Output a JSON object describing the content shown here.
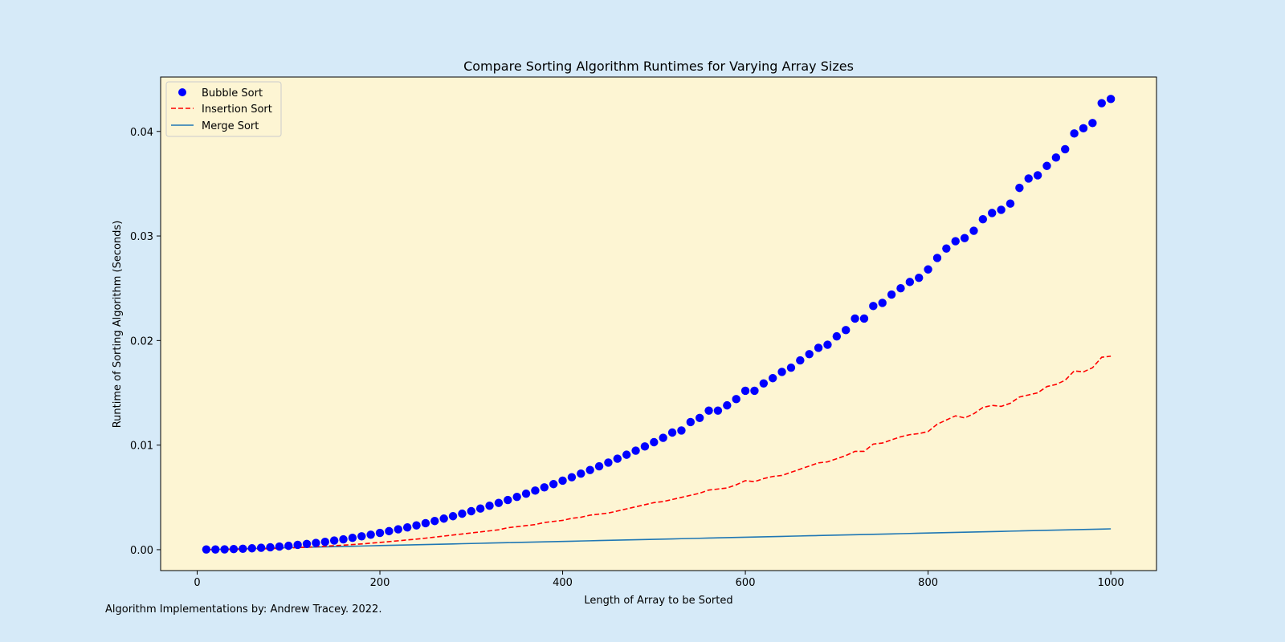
{
  "credit": "Algorithm Implementations by: Andrew Tracey. 2022.",
  "colors": {
    "figure_background": "#d6eaf8",
    "axes_background": "#fdf5d3",
    "bubble": "#0000ff",
    "insertion": "#ff0000",
    "merge": "#1f77b4"
  },
  "chart_data": {
    "type": "line",
    "title": "Compare Sorting Algorithm Runtimes for Varying Array Sizes",
    "xlabel": "Length of Array to be Sorted",
    "ylabel": "Runtime of Sorting Algorithm (Seconds)",
    "xlim": [
      -40,
      1050
    ],
    "ylim": [
      -0.002,
      0.0452
    ],
    "xticks": [
      0,
      200,
      400,
      600,
      800,
      1000
    ],
    "xtick_labels": [
      "0",
      "200",
      "400",
      "600",
      "800",
      "1000"
    ],
    "yticks": [
      0,
      0.01,
      0.02,
      0.03,
      0.04
    ],
    "ytick_labels": [
      "0.00",
      "0.01",
      "0.02",
      "0.03",
      "0.04"
    ],
    "grid": false,
    "legend_position": "upper-left",
    "x": [
      10,
      20,
      30,
      40,
      50,
      60,
      70,
      80,
      90,
      100,
      110,
      120,
      130,
      140,
      150,
      160,
      170,
      180,
      190,
      200,
      210,
      220,
      230,
      240,
      250,
      260,
      270,
      280,
      290,
      300,
      310,
      320,
      330,
      340,
      350,
      360,
      370,
      380,
      390,
      400,
      410,
      420,
      430,
      440,
      450,
      460,
      470,
      480,
      490,
      500,
      510,
      520,
      530,
      540,
      550,
      560,
      570,
      580,
      590,
      600,
      610,
      620,
      630,
      640,
      650,
      660,
      670,
      680,
      690,
      700,
      710,
      720,
      730,
      740,
      750,
      760,
      770,
      780,
      790,
      800,
      810,
      820,
      830,
      840,
      850,
      860,
      870,
      880,
      890,
      900,
      910,
      920,
      930,
      940,
      950,
      960,
      970,
      980,
      990,
      1000
    ],
    "series": [
      {
        "name": "Bubble Sort",
        "style": "markers",
        "color": "#0000ff",
        "values": [
          2e-05,
          2e-05,
          3e-05,
          6e-05,
          9e-05,
          0.00013,
          0.00018,
          0.00023,
          0.0003,
          0.00037,
          0.00046,
          0.00055,
          0.00064,
          0.00075,
          0.00087,
          0.00099,
          0.00113,
          0.00128,
          0.00143,
          0.0016,
          0.00177,
          0.00195,
          0.00213,
          0.00232,
          0.00253,
          0.00274,
          0.00297,
          0.0032,
          0.00344,
          0.00368,
          0.00393,
          0.0042,
          0.00447,
          0.00475,
          0.00505,
          0.00535,
          0.00565,
          0.00596,
          0.00627,
          0.0066,
          0.00693,
          0.00727,
          0.00762,
          0.00797,
          0.00833,
          0.0087,
          0.00908,
          0.00947,
          0.00987,
          0.01028,
          0.0107,
          0.0112,
          0.0114,
          0.0122,
          0.0126,
          0.0133,
          0.0133,
          0.0138,
          0.0144,
          0.0152,
          0.0152,
          0.0159,
          0.0164,
          0.017,
          0.0174,
          0.0181,
          0.0187,
          0.0193,
          0.0196,
          0.0204,
          0.021,
          0.0221,
          0.0221,
          0.0233,
          0.0236,
          0.0244,
          0.025,
          0.0256,
          0.026,
          0.0268,
          0.0279,
          0.0288,
          0.0295,
          0.0298,
          0.0305,
          0.0316,
          0.0322,
          0.0325,
          0.0331,
          0.0346,
          0.0355,
          0.0358,
          0.0367,
          0.0375,
          0.0383,
          0.0398,
          0.0403,
          0.0408,
          0.0427,
          0.0431
        ]
      },
      {
        "name": "Insertion Sort",
        "style": "dashed",
        "color": "#ff0000",
        "values": [
          1e-05,
          1e-05,
          2e-05,
          3e-05,
          4e-05,
          6e-05,
          8e-05,
          0.0001,
          0.00013,
          0.00016,
          0.0002,
          0.00024,
          0.00028,
          0.00033,
          0.00038,
          0.00043,
          0.00049,
          0.00055,
          0.00062,
          0.00069,
          0.00077,
          0.00085,
          0.00093,
          0.00101,
          0.0011,
          0.0012,
          0.0013,
          0.0014,
          0.0015,
          0.0016,
          0.0017,
          0.0018,
          0.0019,
          0.0021,
          0.0022,
          0.0023,
          0.0024,
          0.0026,
          0.0027,
          0.0028,
          0.003,
          0.0031,
          0.0033,
          0.0034,
          0.0035,
          0.0037,
          0.0039,
          0.0041,
          0.0043,
          0.0045,
          0.0046,
          0.0048,
          0.005,
          0.0052,
          0.0054,
          0.0057,
          0.0058,
          0.0059,
          0.0062,
          0.0066,
          0.0065,
          0.0068,
          0.007,
          0.0071,
          0.0074,
          0.0077,
          0.008,
          0.0083,
          0.0084,
          0.0087,
          0.009,
          0.0094,
          0.0094,
          0.0101,
          0.0102,
          0.0105,
          0.0108,
          0.011,
          0.0111,
          0.0113,
          0.012,
          0.0124,
          0.0128,
          0.0126,
          0.013,
          0.0136,
          0.0138,
          0.0137,
          0.014,
          0.0146,
          0.0148,
          0.015,
          0.0156,
          0.0158,
          0.0162,
          0.0171,
          0.017,
          0.0174,
          0.0184,
          0.0185
        ]
      },
      {
        "name": "Merge Sort",
        "style": "solid",
        "color": "#1f77b4",
        "values": [
          1e-05,
          3e-05,
          5e-05,
          7e-05,
          9e-05,
          0.00011,
          0.00013,
          0.00015,
          0.00017,
          0.00019,
          0.00021,
          0.00023,
          0.00025,
          0.00027,
          0.00029,
          0.00031,
          0.00033,
          0.00035,
          0.00037,
          0.00039,
          0.00041,
          0.00043,
          0.00045,
          0.00047,
          0.00049,
          0.00051,
          0.00053,
          0.00055,
          0.00057,
          0.00059,
          0.00061,
          0.00063,
          0.00065,
          0.00067,
          0.00069,
          0.00071,
          0.00073,
          0.00075,
          0.00077,
          0.00079,
          0.00081,
          0.00083,
          0.00085,
          0.00087,
          0.00089,
          0.00091,
          0.00093,
          0.00095,
          0.00097,
          0.00099,
          0.00101,
          0.00103,
          0.00105,
          0.00107,
          0.00109,
          0.00111,
          0.00113,
          0.00115,
          0.00117,
          0.00119,
          0.00121,
          0.00123,
          0.00125,
          0.00127,
          0.00129,
          0.00131,
          0.00133,
          0.00135,
          0.00137,
          0.00139,
          0.00141,
          0.00143,
          0.00145,
          0.00147,
          0.00149,
          0.00151,
          0.00153,
          0.00155,
          0.00157,
          0.00159,
          0.00161,
          0.00163,
          0.00165,
          0.00167,
          0.00169,
          0.00171,
          0.00173,
          0.00175,
          0.00177,
          0.00179,
          0.00181,
          0.00183,
          0.00185,
          0.00187,
          0.00189,
          0.00191,
          0.00193,
          0.00195,
          0.00197,
          0.00199
        ]
      }
    ]
  }
}
